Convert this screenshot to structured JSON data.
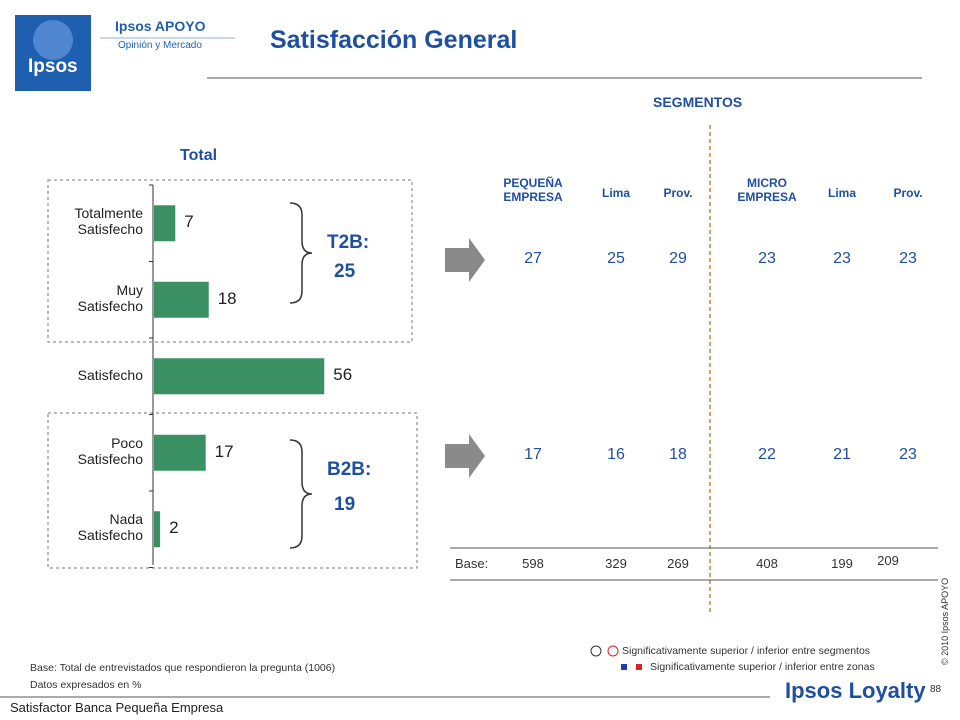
{
  "header": {
    "logo_mark": "Ipsos",
    "logo_brand": "Ipsos APOYO",
    "logo_tagline": "Opinión y Mercado",
    "title": "Satisfacción General"
  },
  "chart_data": {
    "type": "bar",
    "orientation": "horizontal",
    "title": "Total",
    "categories": [
      "Totalmente\nSatisfecho",
      "Muy\nSatisfecho",
      "Satisfecho",
      "Poco\nSatisfecho",
      "Nada\nSatisfecho"
    ],
    "values": [
      7,
      18,
      56,
      17,
      2
    ],
    "color": "#3a9062"
  },
  "summary": {
    "t2b": {
      "label": "T2B:",
      "value": 25
    },
    "b2b": {
      "label": "B2B:",
      "value": 19
    }
  },
  "segments": {
    "title": "SEGMENTOS",
    "columns": [
      "PEQUEÑA\nEMPRESA",
      "Lima",
      "Prov.",
      "MICRO\nEMPRESA",
      "Lima",
      "Prov."
    ],
    "t2b": [
      27,
      25,
      29,
      23,
      23,
      23
    ],
    "b2b": [
      17,
      16,
      18,
      22,
      21,
      23
    ],
    "base_label": "Base:",
    "base": [
      598,
      329,
      269,
      408,
      199,
      209
    ]
  },
  "legend": {
    "segments": "Significativamente superior / inferior entre segmentos",
    "zones": "Significativamente superior / inferior entre zonas"
  },
  "notes": [
    "Base: Total de entrevistados que respondieron la pregunta (1006)",
    "Datos expresados en %"
  ],
  "footer": {
    "left": "Satisfactor Banca Pequeña Empresa",
    "brand": "Ipsos Loyalty",
    "page": "88",
    "copyright": "© 2010 Ipsos APOYO"
  }
}
